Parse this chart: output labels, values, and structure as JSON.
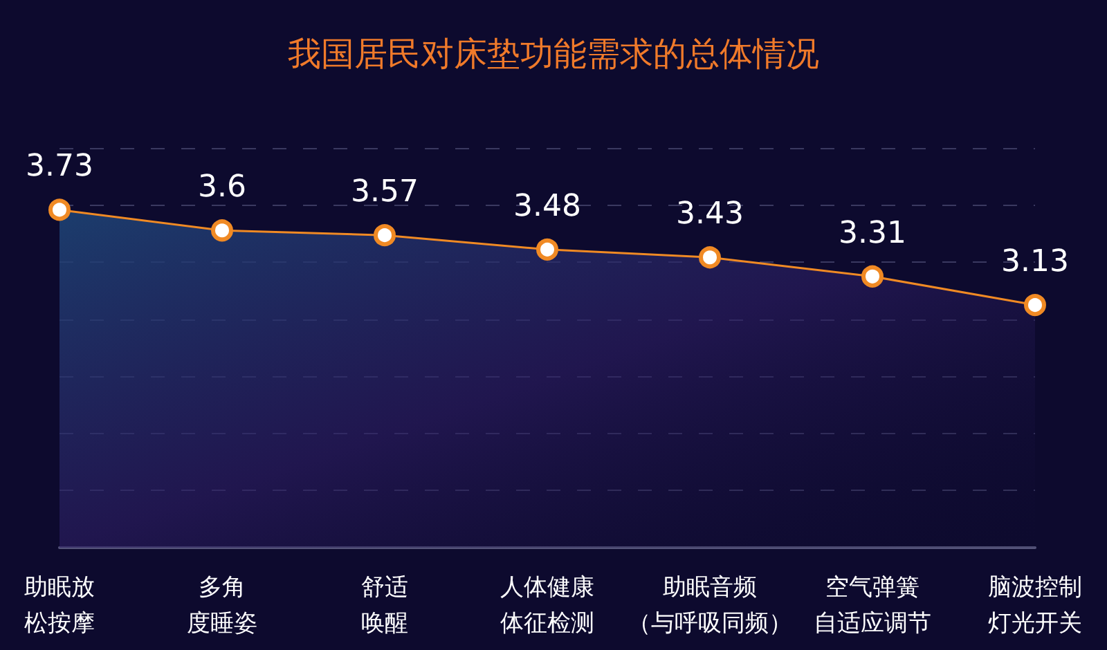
{
  "chart_data": {
    "type": "area",
    "title": "我国居民对床垫功能需求的总体情况",
    "categories": [
      "助眠放松按摩",
      "多角度睡姿",
      "舒适唤醒",
      "人体健康体征检测",
      "助眠音频（与呼吸同频）",
      "空气弹簧自适应调节",
      "脑波控制灯光开关"
    ],
    "series": [
      {
        "color": "#f08a24",
        "values": [
          3.73,
          3.6,
          3.57,
          3.48,
          3.43,
          3.31,
          3.13
        ]
      }
    ],
    "ylim": [
      1.6,
      4.12
    ],
    "yticks": [
      {
        "value": 1.6,
        "label": null
      },
      {
        "value": 1.96,
        "label": null
      },
      {
        "value": 2.32,
        "label": null
      },
      {
        "value": 2.68,
        "label": null
      },
      {
        "value": 3.04,
        "label": null
      },
      {
        "value": 3.4,
        "label": null
      },
      {
        "value": 3.76,
        "label": null
      },
      {
        "value": 4.12,
        "label": null
      }
    ],
    "grid": "y",
    "tick_labels": "x",
    "data_labels": true,
    "marker": "circle"
  }
}
